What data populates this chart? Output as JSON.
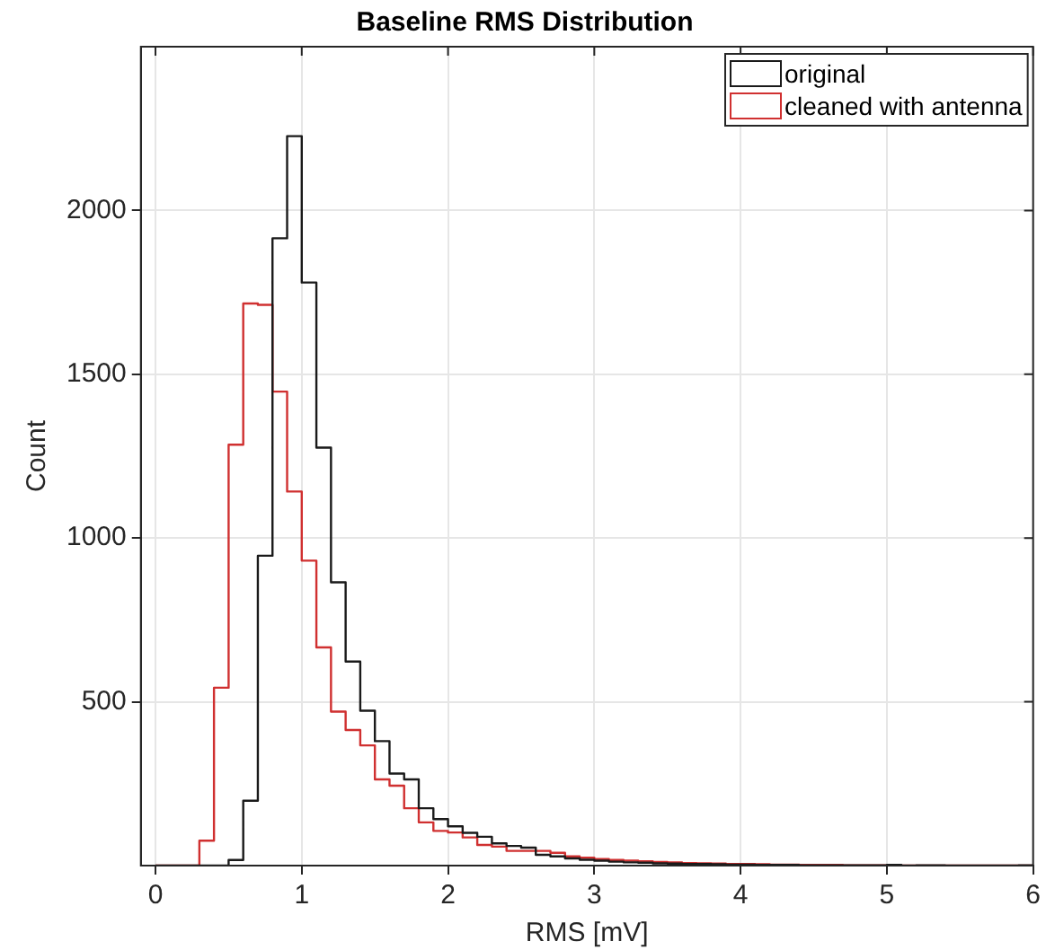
{
  "chart_data": {
    "type": "histogram",
    "title": "Baseline RMS Distribution",
    "xlabel": "RMS [mV]",
    "ylabel": "Count",
    "bins": [
      0,
      0.1,
      0.2,
      0.3,
      0.4,
      0.5,
      0.6,
      0.7,
      0.8,
      0.9,
      1,
      1.1,
      1.2,
      1.3,
      1.4,
      1.5,
      1.6,
      1.7,
      1.8,
      1.9,
      2,
      2.1,
      2.2,
      2.3,
      2.4,
      2.5,
      2.6,
      2.7,
      2.8,
      2.9,
      3,
      3.1,
      3.2,
      3.3,
      3.4,
      3.5,
      3.6,
      3.7,
      3.8,
      3.9,
      4,
      4.1,
      4.2,
      4.3,
      4.4,
      4.5,
      4.6,
      4.7,
      4.8,
      4.9,
      5,
      5.1,
      5.2,
      5.3,
      5.4,
      5.5,
      5.6,
      5.7,
      5.8,
      5.9,
      6
    ],
    "series": [
      {
        "name": "original",
        "color": "#1a1a1a",
        "values": [
          0,
          0,
          0,
          0,
          0,
          17,
          198,
          946,
          1915,
          2227,
          1780,
          1276,
          865,
          623,
          473,
          380,
          281,
          263,
          175,
          142,
          120,
          100,
          88,
          68,
          60,
          55,
          33,
          28,
          22,
          18,
          15,
          12,
          10,
          9,
          7,
          6,
          5,
          5,
          4,
          3,
          3,
          2,
          2,
          2,
          1,
          1,
          1,
          1,
          1,
          1,
          2,
          0,
          1,
          1,
          0,
          0,
          0,
          0,
          0,
          1
        ]
      },
      {
        "name": "cleaned with antenna",
        "color": "#d03030",
        "values": [
          0,
          0,
          0,
          76,
          543,
          1285,
          1716,
          1712,
          1447,
          1142,
          931,
          666,
          470,
          414,
          367,
          263,
          244,
          175,
          132,
          106,
          101,
          86,
          63,
          58,
          45,
          45,
          45,
          39,
          28,
          24,
          20,
          17,
          15,
          13,
          11,
          10,
          8,
          7,
          6,
          5,
          5,
          4,
          3,
          3,
          2,
          2,
          2,
          1,
          1,
          1,
          0,
          0,
          0,
          0,
          0,
          0,
          0,
          0,
          0,
          0
        ]
      }
    ],
    "xlim": [
      -0.1,
      6
    ],
    "xticks": [
      0,
      1,
      2,
      3,
      4,
      5,
      6
    ],
    "ylim": [
      0,
      2500
    ],
    "yticks": [
      500,
      1000,
      1500,
      2000
    ],
    "grid": true,
    "legend": "top right"
  }
}
